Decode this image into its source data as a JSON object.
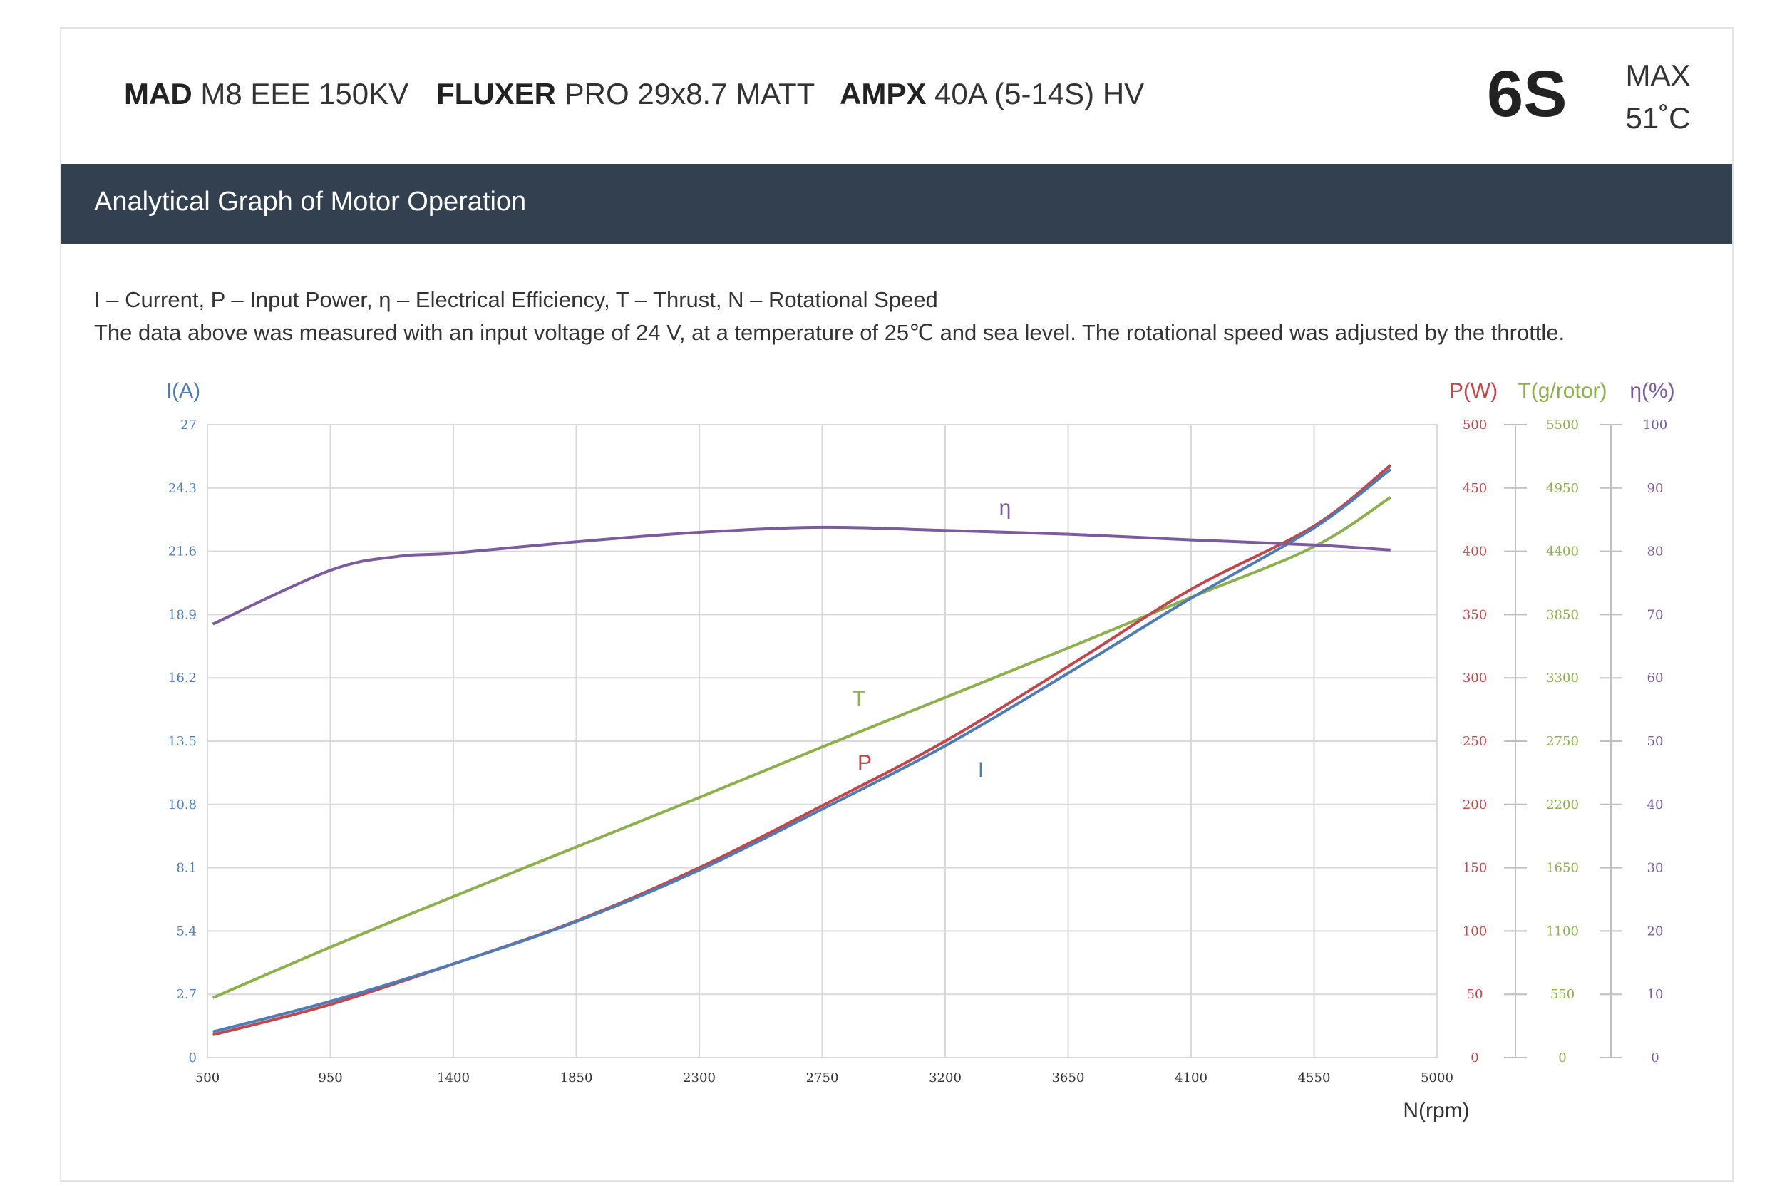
{
  "header": {
    "motor_brand": "MAD",
    "motor_model": "M8 EEE 150KV",
    "prop_brand": "FLUXER",
    "prop_model": "PRO 29x8.7 MATT",
    "esc_brand": "AMPX",
    "esc_model": "40A (5-14S) HV",
    "cells": "6S",
    "max_label": "MAX",
    "max_temp": "51˚C"
  },
  "section_title": "Analytical Graph of Motor Operation",
  "legend_line": "I – Current, P – Input Power, η – Electrical Efficiency, T – Thrust,   N – Rotational Speed",
  "note_line": "The data above was measured with an input voltage of 24 V, at a temperature of 25℃ and sea level. The rotational speed was adjusted by the throttle.",
  "colors": {
    "current": "#4f7cb5",
    "power": "#c0474b",
    "thrust": "#8db04e",
    "efficiency": "#7b5b9e",
    "band": "#334050",
    "grid": "#d9d9d9"
  },
  "chart_data": {
    "type": "line",
    "xlabel": "N(rpm)",
    "xlim": [
      500,
      5000
    ],
    "x_ticks": [
      "500",
      "950",
      "1400",
      "1850",
      "2300",
      "2750",
      "3200",
      "3650",
      "4100",
      "4550",
      "5000"
    ],
    "grid": true,
    "axes": {
      "current": {
        "label": "I(A)",
        "range": [
          0,
          27
        ],
        "ticks": [
          "0",
          "2.7",
          "5.4",
          "8.1",
          "10.8",
          "13.5",
          "16.2",
          "18.9",
          "21.6",
          "24.3",
          "27"
        ]
      },
      "power": {
        "label": "P(W)",
        "range": [
          0,
          500
        ],
        "ticks": [
          "0",
          "50",
          "100",
          "150",
          "200",
          "250",
          "300",
          "350",
          "400",
          "450",
          "500"
        ]
      },
      "thrust": {
        "label": "T(g/rotor)",
        "range": [
          0,
          5500
        ],
        "ticks": [
          "0",
          "550",
          "1100",
          "1650",
          "2200",
          "2750",
          "3300",
          "3850",
          "4400",
          "4950",
          "5500"
        ]
      },
      "efficiency": {
        "label": "η(%)",
        "range": [
          0,
          100
        ],
        "ticks": [
          "0",
          "10",
          "20",
          "30",
          "40",
          "50",
          "60",
          "70",
          "80",
          "90",
          "100"
        ]
      }
    },
    "series": [
      {
        "name": "I",
        "axis": "current",
        "x": [
          520,
          950,
          1400,
          1850,
          2300,
          2750,
          3200,
          3650,
          4100,
          4550,
          4830
        ],
        "y": [
          1.1,
          2.4,
          4.0,
          5.8,
          8.0,
          10.6,
          13.3,
          16.4,
          19.6,
          22.6,
          25.1
        ]
      },
      {
        "name": "P",
        "axis": "power",
        "x": [
          520,
          950,
          1400,
          1850,
          2300,
          2750,
          3200,
          3650,
          4100,
          4550,
          4830
        ],
        "y": [
          18,
          42,
          74,
          108,
          150,
          199,
          250,
          309,
          370,
          420,
          468
        ]
      },
      {
        "name": "T",
        "axis": "thrust",
        "x": [
          520,
          950,
          1400,
          1850,
          2300,
          2750,
          3200,
          3650,
          4100,
          4550,
          4830
        ],
        "y": [
          520,
          960,
          1400,
          1830,
          2260,
          2700,
          3130,
          3560,
          4000,
          4440,
          4870
        ]
      },
      {
        "name": "η",
        "axis": "efficiency",
        "x": [
          520,
          950,
          1200,
          1400,
          1850,
          2300,
          2750,
          3200,
          3650,
          4100,
          4550,
          4830
        ],
        "y": [
          68.5,
          77,
          79.2,
          79.7,
          81.5,
          83,
          83.8,
          83.3,
          82.7,
          81.8,
          81,
          80.2
        ]
      }
    ],
    "annotations": [
      "η",
      "T",
      "P",
      "I"
    ]
  }
}
